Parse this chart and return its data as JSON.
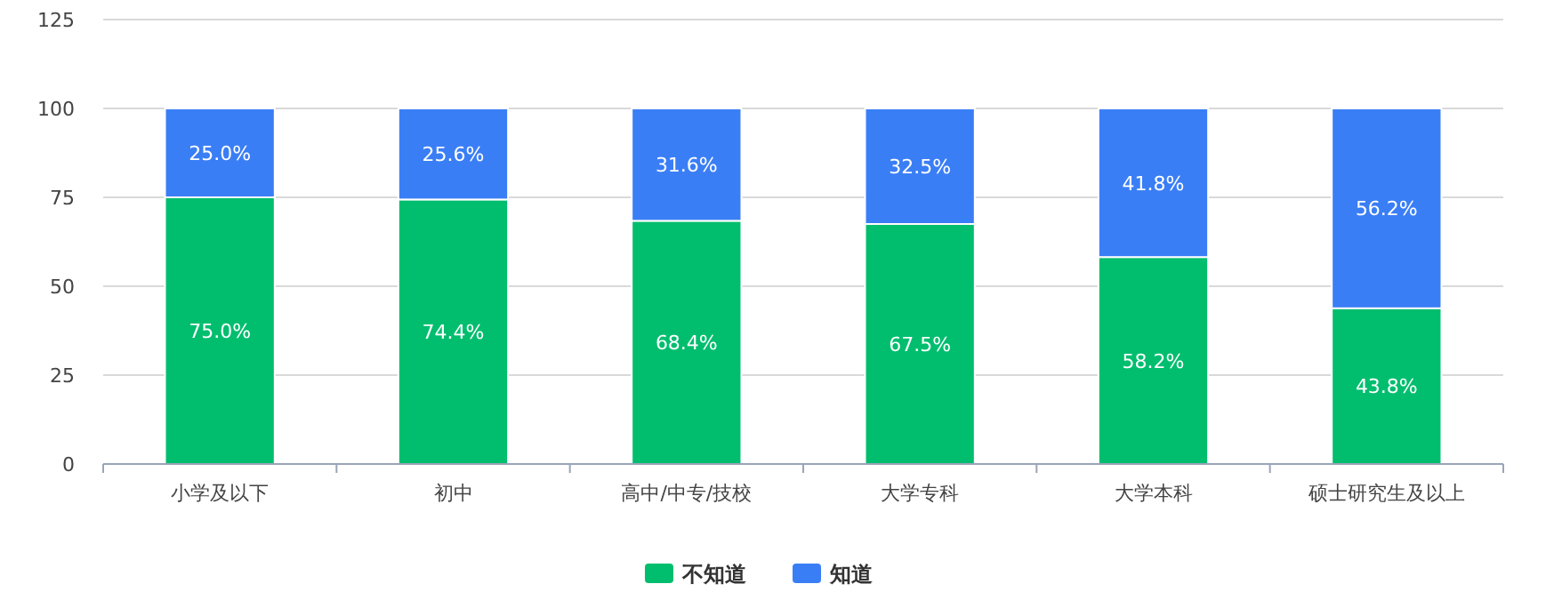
{
  "chart_data": {
    "type": "bar",
    "stacked": true,
    "categories": [
      "小学及以下",
      "初中",
      "高中/中专/技校",
      "大学专科",
      "大学本科",
      "硕士研究生及以上"
    ],
    "series": [
      {
        "name": "不知道",
        "color": "#00be6e",
        "values": [
          75.0,
          74.4,
          68.4,
          67.5,
          58.2,
          43.8
        ],
        "value_labels": [
          "75.0%",
          "74.4%",
          "68.4%",
          "67.5%",
          "58.2%",
          "43.8%"
        ]
      },
      {
        "name": "知道",
        "color": "#3a7ef6",
        "values": [
          25.0,
          25.6,
          31.6,
          32.5,
          41.8,
          56.2
        ],
        "value_labels": [
          "25.0%",
          "25.6%",
          "31.6%",
          "32.5%",
          "41.8%",
          "56.2%"
        ]
      }
    ],
    "ylim": [
      0,
      125
    ],
    "yticks": [
      0,
      25,
      50,
      75,
      100,
      125
    ],
    "grid": "y",
    "legend": "bottom"
  }
}
